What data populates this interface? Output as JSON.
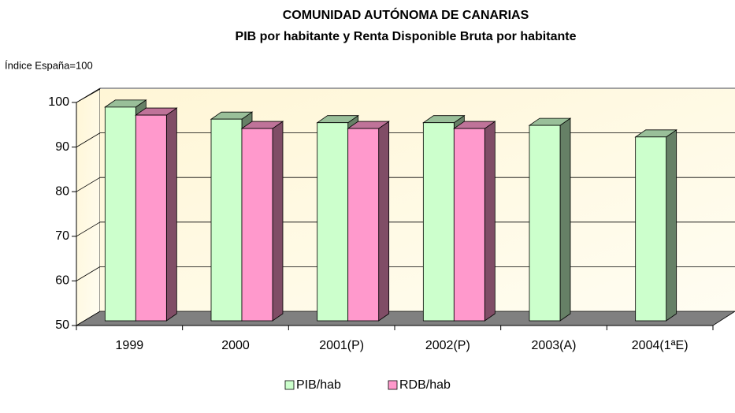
{
  "chart_data": {
    "type": "bar",
    "title": "COMUNIDAD AUTÓNOMA DE CANARIAS",
    "subtitle": "PIB por habitante y Renta Disponible Bruta por habitante",
    "y_label": "Índice España=100",
    "categories": [
      "1999",
      "2000",
      "2001(P)",
      "2002(P)",
      "2003(A)",
      "2004(1ªE)"
    ],
    "series": [
      {
        "name": "PIB/hab",
        "color": "#ccffcc",
        "values": [
          97.9,
          95.2,
          94.4,
          94.4,
          93.8,
          91.2
        ]
      },
      {
        "name": "RDB/hab",
        "color": "#ff99cc",
        "values": [
          96.1,
          93.1,
          93.1,
          93.1,
          null,
          null
        ]
      }
    ],
    "ylim": [
      50,
      100
    ],
    "yticks": [
      50,
      60,
      70,
      80,
      90,
      100
    ],
    "grid": true
  }
}
